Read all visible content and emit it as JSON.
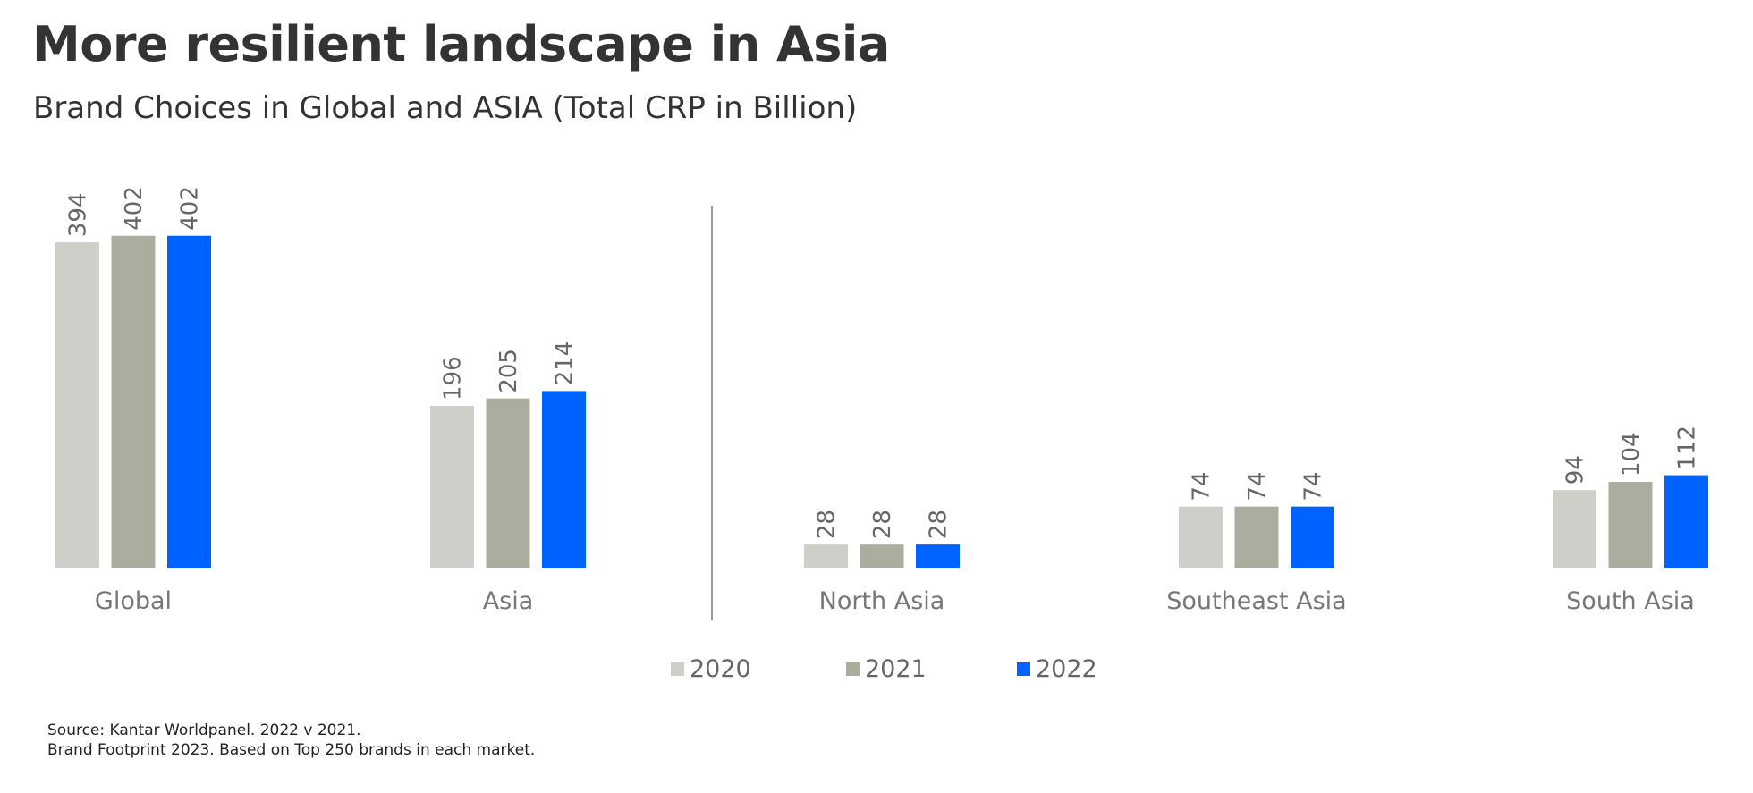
{
  "title": "More resilient landscape in Asia",
  "subtitle": "Brand Choices in Global and ASIA (Total CRP in Billion)",
  "colors": {
    "2020": "#cfcfc9",
    "2021": "#acac9f",
    "2022": "#0062ff",
    "divider": "#999999"
  },
  "chart_data": {
    "type": "bar",
    "categories": [
      "Global",
      "Asia",
      "North Asia",
      "Southeast Asia",
      "South Asia"
    ],
    "series": [
      {
        "name": "2020",
        "values": [
          394,
          196,
          28,
          74,
          94
        ]
      },
      {
        "name": "2021",
        "values": [
          402,
          205,
          28,
          74,
          104
        ]
      },
      {
        "name": "2022",
        "values": [
          402,
          214,
          28,
          74,
          112
        ]
      }
    ],
    "data_labels": true,
    "legend_position": "bottom",
    "grid": false
  },
  "legend": [
    {
      "label": "2020",
      "color": "#cfcfc9"
    },
    {
      "label": "2021",
      "color": "#acac9f"
    },
    {
      "label": "2022",
      "color": "#0062ff"
    }
  ],
  "source": {
    "line1": "Source: Kantar Worldpanel. 2022 v 2021.",
    "line2": "Brand Footprint 2023. Based on Top 250 brands in each market."
  }
}
